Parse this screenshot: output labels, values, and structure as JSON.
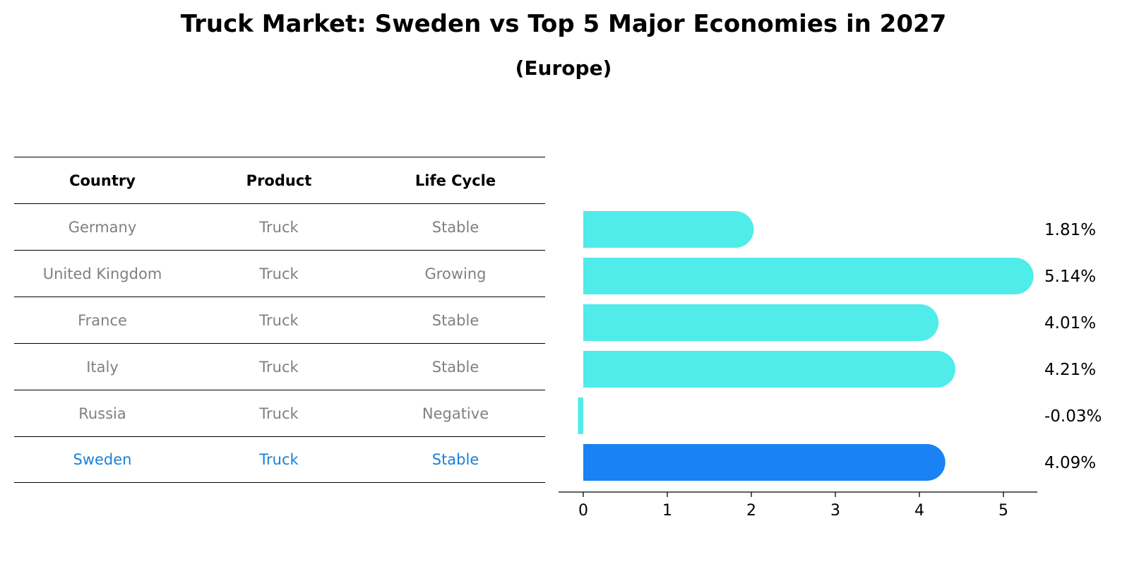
{
  "title": "Truck Market: Sweden vs Top 5 Major Economies in 2027",
  "subtitle": "(Europe)",
  "table": {
    "headers": [
      "Country",
      "Product",
      "Life Cycle"
    ],
    "rows": [
      [
        "Germany",
        "Truck",
        "Stable"
      ],
      [
        "United Kingdom",
        "Truck",
        "Growing"
      ],
      [
        "France",
        "Truck",
        "Stable"
      ],
      [
        "Italy",
        "Truck",
        "Stable"
      ],
      [
        "Russia",
        "Truck",
        "Negative"
      ],
      [
        "Sweden",
        "Truck",
        "Stable"
      ]
    ]
  },
  "colors": {
    "bar": "#4fecea",
    "highlight_bar": "#1a82f3",
    "highlight_text": "#1a80d6",
    "muted_text": "#808080"
  },
  "chart_data": {
    "type": "bar",
    "orientation": "horizontal",
    "categories": [
      "Germany",
      "United Kingdom",
      "France",
      "Italy",
      "Russia",
      "Sweden"
    ],
    "values": [
      1.81,
      5.14,
      4.01,
      4.21,
      -0.03,
      4.09
    ],
    "value_labels": [
      "1.81%",
      "5.14%",
      "4.01%",
      "4.21%",
      "-0.03%",
      "4.09%"
    ],
    "highlight": "Sweden",
    "xticks": [
      "0",
      "1",
      "2",
      "3",
      "4",
      "5"
    ],
    "xlim": [
      -0.3,
      5.4
    ]
  }
}
